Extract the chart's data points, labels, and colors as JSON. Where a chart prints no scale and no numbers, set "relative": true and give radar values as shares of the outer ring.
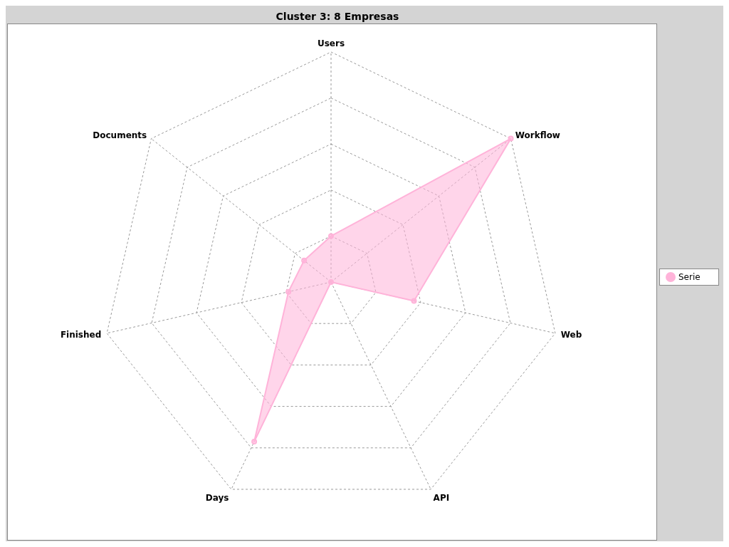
{
  "chart_data": {
    "type": "radar",
    "title": "Cluster 3: 8 Empresas",
    "categories": [
      "Users",
      "Workflow",
      "Web",
      "API",
      "Days",
      "Finished",
      "Documents"
    ],
    "relative": true,
    "series": [
      {
        "name": "Serie",
        "color": "#ffb3d9",
        "values": [
          0.2,
          1,
          0.37,
          0,
          0.77,
          0.19,
          0.15
        ]
      }
    ],
    "grid": true,
    "legend": "right",
    "marker": "circle"
  }
}
